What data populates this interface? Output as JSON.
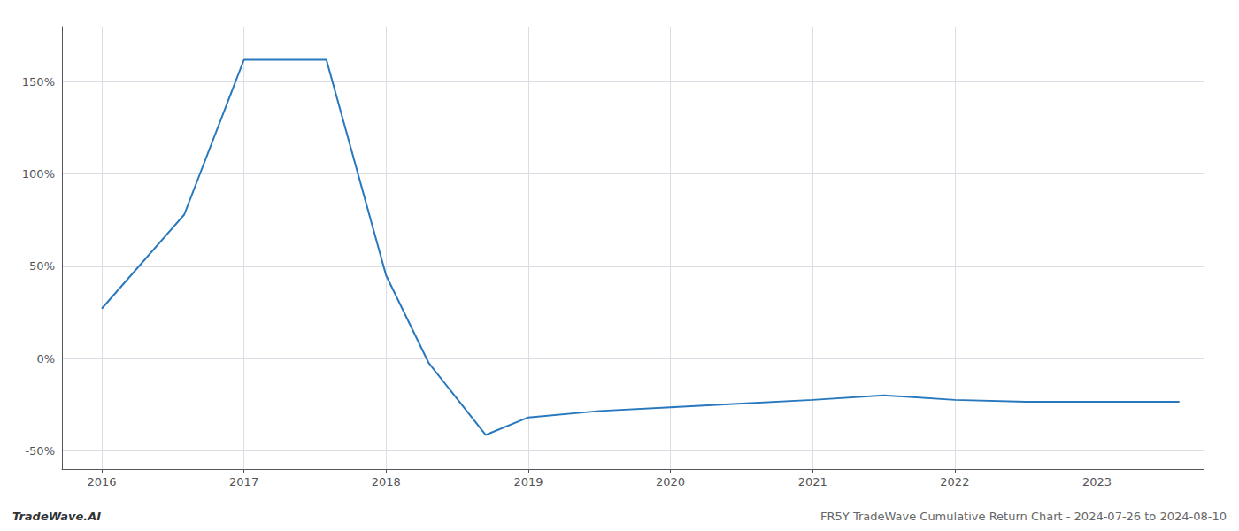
{
  "chart_data": {
    "type": "line",
    "x": [
      2016.0,
      2016.58,
      2017.0,
      2017.58,
      2018.0,
      2018.3,
      2018.7,
      2019.0,
      2019.5,
      2020.0,
      2020.5,
      2021.0,
      2021.5,
      2022.0,
      2022.5,
      2023.0,
      2023.58
    ],
    "values": [
      0.27,
      0.78,
      1.62,
      1.62,
      0.45,
      -0.025,
      -0.415,
      -0.32,
      -0.285,
      -0.265,
      -0.245,
      -0.225,
      -0.2,
      -0.225,
      -0.235,
      -0.235,
      -0.235
    ],
    "color": "#2878be",
    "xlim": [
      2015.72,
      2023.75
    ],
    "xticks": [
      2016,
      2017,
      2018,
      2019,
      2020,
      2021,
      2022,
      2023
    ],
    "ylim": [
      -0.6,
      1.8
    ],
    "yticks": [
      {
        "value": -0.5,
        "label": "-50%"
      },
      {
        "value": 0.0,
        "label": "0%"
      },
      {
        "value": 0.5,
        "label": "50%"
      },
      {
        "value": 1.0,
        "label": "100%"
      },
      {
        "value": 1.5,
        "label": "150%"
      }
    ],
    "grid": true,
    "annotations": [
      "TradeWave.AI",
      "FR5Y TradeWave Cumulative Return Chart - 2024-07-26 to 2024-08-10"
    ]
  }
}
